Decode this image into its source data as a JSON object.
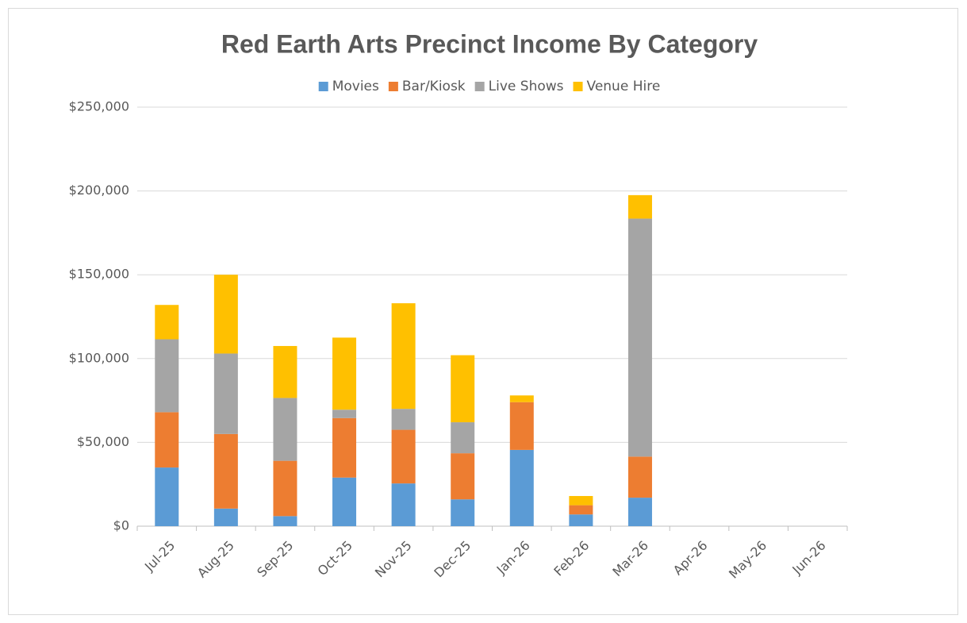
{
  "chart_data": {
    "type": "stacked_bar",
    "title": "Red Earth Arts Precinct Income By Category",
    "categories": [
      "Jul-25",
      "Aug-25",
      "Sep-25",
      "Oct-25",
      "Nov-25",
      "Dec-25",
      "Jan-26",
      "Feb-26",
      "Mar-26",
      "Apr-26",
      "May-26",
      "Jun-26"
    ],
    "series": [
      {
        "name": "Movies",
        "color": "#5b9bd5",
        "values": [
          35000,
          10500,
          6000,
          29000,
          25500,
          16000,
          45500,
          7000,
          17000,
          0,
          0,
          0
        ]
      },
      {
        "name": "Bar/Kiosk",
        "color": "#ed7d31",
        "values": [
          33000,
          44500,
          33000,
          35500,
          32000,
          27500,
          28500,
          5500,
          24500,
          0,
          0,
          0
        ]
      },
      {
        "name": "Live Shows",
        "color": "#a5a5a5",
        "values": [
          43500,
          48000,
          37500,
          5000,
          12500,
          18500,
          0,
          0,
          142000,
          0,
          0,
          0
        ]
      },
      {
        "name": "Venue Hire",
        "color": "#ffc000",
        "values": [
          20500,
          47000,
          31000,
          43000,
          63000,
          40000,
          4000,
          5500,
          14000,
          0,
          0,
          0
        ]
      }
    ],
    "ylim": [
      0,
      250000
    ],
    "yticks": [
      {
        "value": 0,
        "label": "$0"
      },
      {
        "value": 50000,
        "label": "$50,000"
      },
      {
        "value": 100000,
        "label": "$100,000"
      },
      {
        "value": 150000,
        "label": "$150,000"
      },
      {
        "value": 200000,
        "label": "$200,000"
      },
      {
        "value": 250000,
        "label": "$250,000"
      }
    ],
    "grid": true,
    "legend": "top"
  }
}
